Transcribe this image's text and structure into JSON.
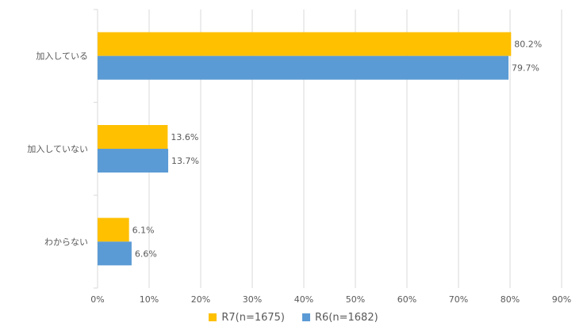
{
  "chart_data": {
    "type": "bar",
    "orientation": "horizontal",
    "categories": [
      "加入している",
      "加入していない",
      "わからない"
    ],
    "series": [
      {
        "name": "R7(n=1675)",
        "color": "#FFC000",
        "values": [
          80.2,
          13.6,
          6.1
        ],
        "labels": [
          "80.2%",
          "13.6%",
          "6.1%"
        ]
      },
      {
        "name": "R6(n=1682)",
        "color": "#5B9BD5",
        "values": [
          79.7,
          13.7,
          6.6
        ],
        "labels": [
          "79.7%",
          "13.7%",
          "6.6%"
        ]
      }
    ],
    "xlim": [
      0,
      90
    ],
    "xticks": [
      "0%",
      "10%",
      "20%",
      "30%",
      "40%",
      "50%",
      "60%",
      "70%",
      "80%",
      "90%"
    ],
    "grid": true,
    "legend_position": "bottom"
  }
}
